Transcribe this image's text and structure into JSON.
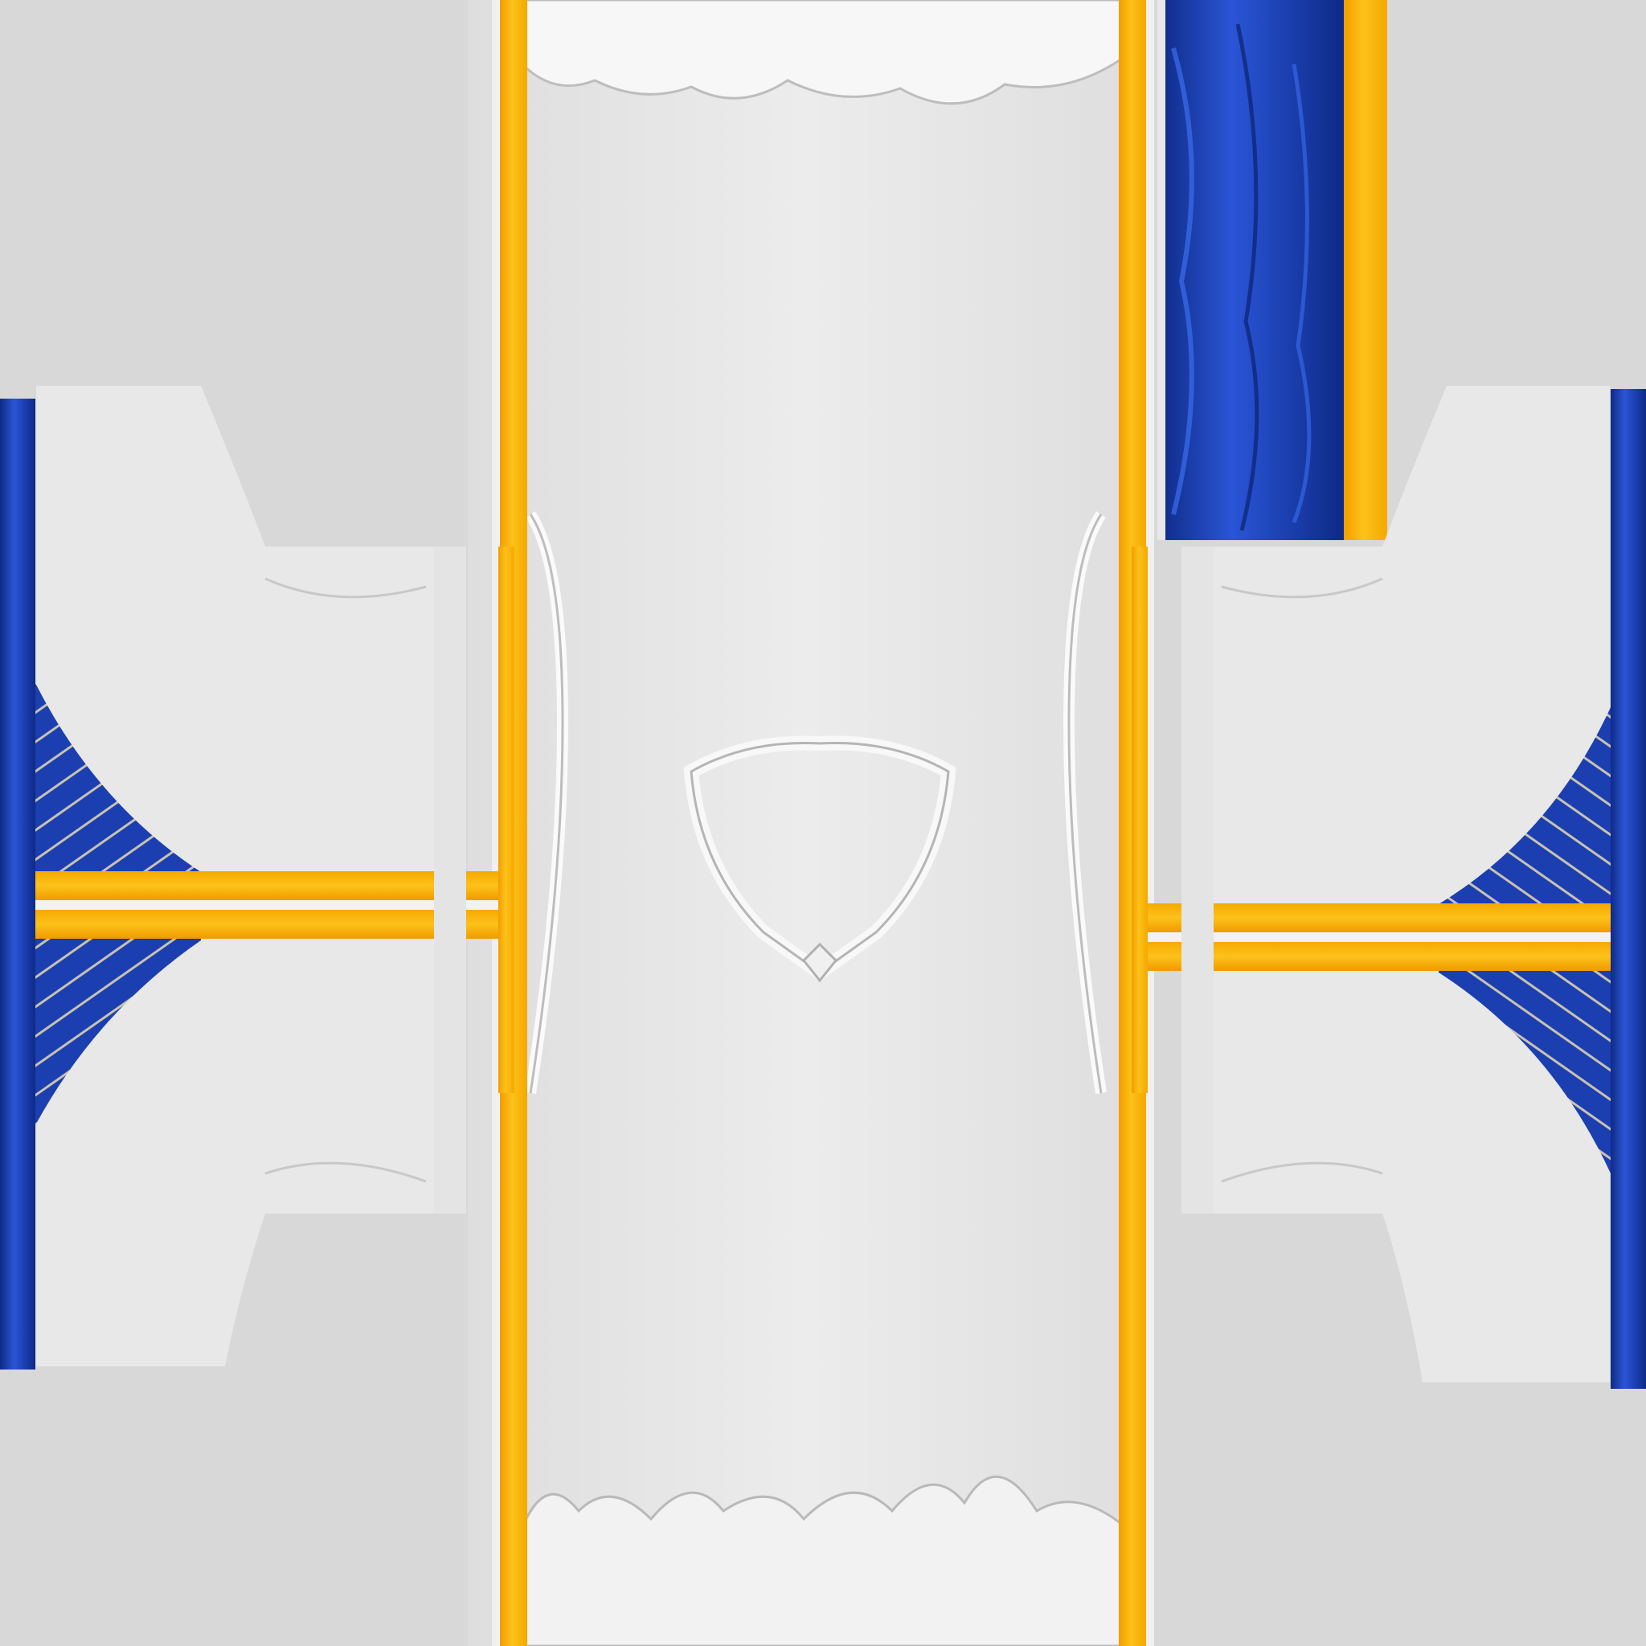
{
  "texture": {
    "background": "#d8d8d8",
    "fabric": "#e9e9e9",
    "fabric_highlight": "#fafafa",
    "fabric_shadow": "#b9b9b9",
    "trim": "#fbbc15",
    "trim_dark": "#f19a00",
    "accent": "#1b3fb0",
    "accent_light": "#2e5ee0",
    "accent_dark": "#0f2a86",
    "pinstripe": "#c9c2b0"
  }
}
